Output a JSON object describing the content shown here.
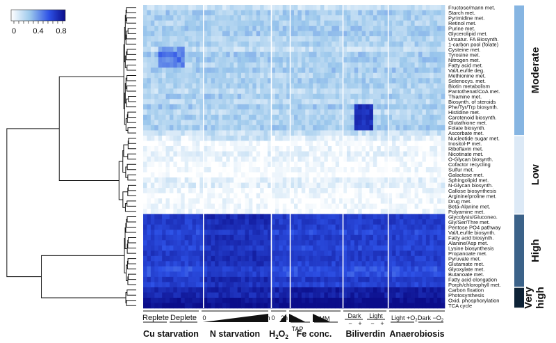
{
  "chart_data": {
    "type": "heatmap",
    "colorbar": {
      "ticks": [
        "0",
        "0.4",
        "0.8"
      ],
      "range": [
        0,
        0.85
      ],
      "colors": [
        "#ffffff",
        "#9cc8ec",
        "#2d51e6",
        "#0b0d8a"
      ]
    },
    "rows": [
      "Fructose/mann met.",
      "Starch met.",
      "Pyrimidine met.",
      "Retinol met.",
      "Purine met.",
      "Glycerolipid met.",
      "Unsatur. FA Biosynth.",
      "1-carbon pool (folate)",
      "Cysteine met.",
      "Tyrosine met.",
      "Nitrogen met.",
      "Fatty acid met.",
      "Val/Leu/Ile deg.",
      "Methionine met.",
      "Selenocys. met.",
      "Biotin metabolism",
      "Pantothenat/CoA met.",
      "Thiamine met.",
      "Biosynth. of steroids",
      "Phe/Tyr/Trp biosynth.",
      "Histidine met.",
      "Carotenoid biosynth.",
      "Glutathione met.",
      "Folate biosynth.",
      "Ascorbate met.",
      "Nucleotide sugar met.",
      "Inositol-P met.",
      "Riboflavin met.",
      "Nicotinate met.",
      "O-Glycan biosynth.",
      "Cofactor recycling",
      "Sulfur met.",
      "Galactose met.",
      "Sphingolipid met.",
      "N-Glycan biosynth.",
      "Callose biosynthesis",
      "Arginine/proline met.",
      "Drug met.",
      "Beta-Alanine met.",
      "Polyamine met.",
      "Glycolysis/Gluconeo.",
      "Gly/Ser/Thre met.",
      "Pentose PO4 pathway",
      "Val/Leu/Ile biosynth.",
      "Fatty acid biosynth.",
      "Alanine/Asp met.",
      "Lysine biosynthesis",
      "Propanoate met.",
      "Pyruvate met.",
      "Glutamate met.",
      "Glyoxylate met.",
      "Butanoate met.",
      "Fatty acid elongation",
      "Porph/chlorophyll met.",
      "Carbon fixation",
      "Photosynthesis",
      "Oxid. phosphorylation",
      "TCA cycle"
    ],
    "clusters": [
      {
        "label": "Moderate",
        "rows": [
          0,
          24
        ],
        "color": "#86b5e2"
      },
      {
        "label": "Low",
        "rows": [
          25,
          39
        ],
        "color": "#dce9f6"
      },
      {
        "label": "High",
        "rows": [
          40,
          53
        ],
        "color": "#3b6289"
      },
      {
        "label": "Very high",
        "rows": [
          54,
          57
        ],
        "color": "#0d2236"
      }
    ],
    "cluster_level": [
      0.22,
      0.04,
      0.68,
      0.86
    ],
    "columns": 80,
    "column_groups": [
      {
        "name": "Cu starvation",
        "cols": [
          0,
          15
        ]
      },
      {
        "name": "N starvation",
        "cols": [
          16,
          33
        ]
      },
      {
        "name": "H2O2",
        "cols": [
          34,
          38
        ]
      },
      {
        "name": "Fe conc.",
        "cols": [
          39,
          52
        ]
      },
      {
        "name": "Biliverdin",
        "cols": [
          53,
          64
        ]
      },
      {
        "name": "Anaerobiosis",
        "cols": [
          65,
          79
        ]
      }
    ],
    "sublabels": {
      "replete": "Replete",
      "deplete": "Deplete",
      "n_start": "0",
      "n_end": "48h",
      "h2o2_start": "0",
      "h2o2_end": "2h",
      "tap": "TAP",
      "mm": "MM",
      "dark": "Dark",
      "light": "Light",
      "minus": "−",
      "plus": "+",
      "light_o2": "Light +O",
      "dark_o2": "Dark −O",
      "o2_sub": "2"
    },
    "h2o2_main": "H",
    "h2o2_sub1": "2",
    "h2o2_mid": "O",
    "h2o2_sub2": "2"
  }
}
